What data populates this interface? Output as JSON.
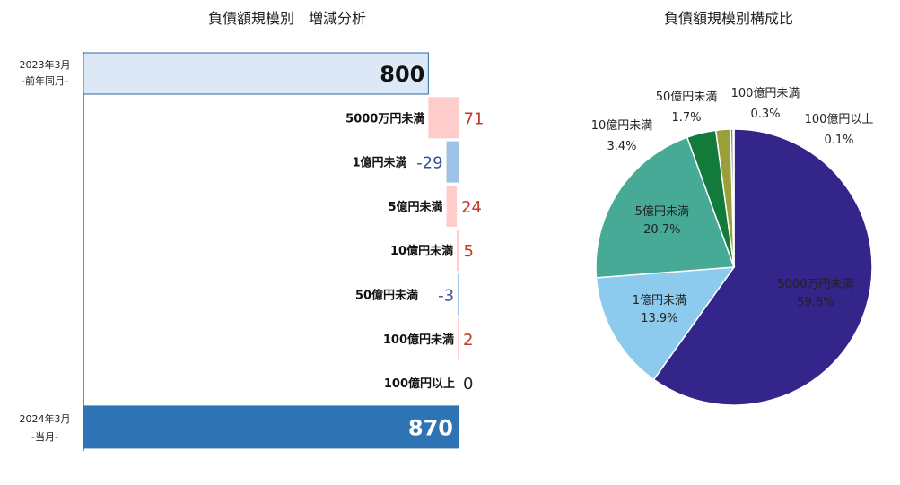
{
  "chart_data": [
    {
      "type": "waterfall",
      "title": "負債額規模別　増減分析",
      "start": {
        "label_line1": "2023年3月",
        "label_line2": "-前年同月-",
        "value": 800,
        "color": "#dce8f6"
      },
      "end": {
        "label_line1": "2024年3月",
        "label_line2": "-当月-",
        "value": 870,
        "color": "#2e74b5"
      },
      "steps": [
        {
          "category": "5000万円未満",
          "value": 71
        },
        {
          "category": "1億円未満",
          "value": -29
        },
        {
          "category": "5億円未満",
          "value": 24
        },
        {
          "category": "10億円未満",
          "value": 5
        },
        {
          "category": "50億円未満",
          "value": -3
        },
        {
          "category": "100億円未満",
          "value": 2
        },
        {
          "category": "100億円以上",
          "value": 0
        }
      ],
      "colors": {
        "increase": "#ffcccc",
        "decrease": "#9dc3e6",
        "increase_text": "#c0392b",
        "decrease_text": "#2f5597",
        "zero_text": "#222222"
      },
      "xlim": [
        0,
        870
      ]
    },
    {
      "type": "pie",
      "title": "負債額規模別構成比",
      "slices": [
        {
          "label": "5000万円未満",
          "value": 59.8,
          "display": "59.8%",
          "color": "#33258a"
        },
        {
          "label": "1億円未満",
          "value": 13.9,
          "display": "13.9%",
          "color": "#8ccbed"
        },
        {
          "label": "5億円未満",
          "value": 20.7,
          "display": "20.7%",
          "color": "#46aa96"
        },
        {
          "label": "10億円未満",
          "value": 3.4,
          "display": "3.4%",
          "color": "#127a3a"
        },
        {
          "label": "50億円未満",
          "value": 1.7,
          "display": "1.7%",
          "color": "#99a03b"
        },
        {
          "label": "100億円未満",
          "value": 0.3,
          "display": "0.3%",
          "color": "#7a7a7a"
        },
        {
          "label": "100億円以上",
          "value": 0.1,
          "display": "0.1%",
          "color": "#c9a7c9"
        }
      ]
    }
  ]
}
